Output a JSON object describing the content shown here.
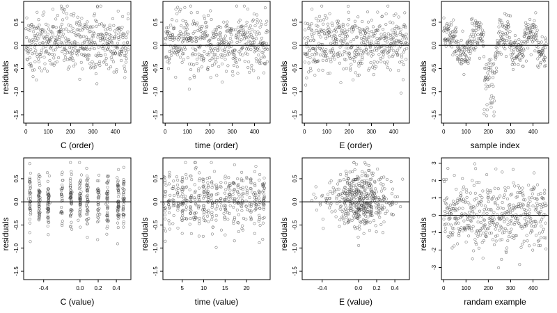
{
  "chart_data": [
    {
      "type": "scatter",
      "ylabel": "residuals",
      "xlabel": "C (order)",
      "xticks": [
        "0",
        "100",
        "200",
        "300",
        "400"
      ],
      "xlim": [
        -10,
        470
      ],
      "yticks": [
        "-1.5",
        "-1.0",
        "-0.5",
        "0.0",
        "0.5"
      ],
      "ylim": [
        -1.68,
        0.95
      ],
      "pattern": "spread_index",
      "n": 460,
      "refline": 0
    },
    {
      "type": "scatter",
      "ylabel": "residuals",
      "xlabel": "time (order)",
      "xticks": [
        "0",
        "100",
        "200",
        "300",
        "400"
      ],
      "xlim": [
        -10,
        470
      ],
      "yticks": [
        "-1.5",
        "-1.0",
        "-0.5",
        "0.0",
        "0.5"
      ],
      "ylim": [
        -1.68,
        0.95
      ],
      "pattern": "spread_index",
      "n": 460,
      "refline": 0
    },
    {
      "type": "scatter",
      "ylabel": "residuals",
      "xlabel": "E (order)",
      "xticks": [
        "0",
        "100",
        "200",
        "300",
        "400"
      ],
      "xlim": [
        -10,
        470
      ],
      "yticks": [
        "-1.5",
        "-1.0",
        "-0.5",
        "0.0",
        "0.5"
      ],
      "ylim": [
        -1.68,
        0.95
      ],
      "pattern": "spread_index",
      "n": 460,
      "refline": 0
    },
    {
      "type": "scatter",
      "ylabel": "residuals",
      "xlabel": "sample index",
      "xticks": [
        "0",
        "100",
        "200",
        "300",
        "400"
      ],
      "xlim": [
        -10,
        470
      ],
      "yticks": [
        "-1.5",
        "-1.0",
        "-0.5",
        "0.0",
        "0.5"
      ],
      "ylim": [
        -1.68,
        0.95
      ],
      "pattern": "clustered_index",
      "n": 460,
      "refline": 0
    },
    {
      "type": "scatter",
      "ylabel": "residuals",
      "xlabel": "C (value)",
      "xticks": [
        "-0.4",
        "0.0",
        "0.2",
        "0.4"
      ],
      "xtick_values": [
        -0.4,
        0.0,
        0.2,
        0.4
      ],
      "xlim": [
        -0.62,
        0.56
      ],
      "yticks": [
        "-1.5",
        "-1.0",
        "-0.5",
        "0.0",
        "0.5"
      ],
      "ylim": [
        -1.68,
        0.95
      ],
      "pattern": "discrete_columns",
      "column_positions": [
        -0.55,
        -0.45,
        -0.35,
        -0.2,
        -0.1,
        0.0,
        0.08,
        0.2,
        0.3,
        0.42,
        0.48
      ],
      "n": 460,
      "refline": 0
    },
    {
      "type": "scatter",
      "ylabel": "residuals",
      "xlabel": "time (value)",
      "xticks": [
        "5",
        "10",
        "15",
        "20"
      ],
      "xtick_values": [
        5,
        10,
        15,
        20
      ],
      "xlim": [
        0.5,
        25.5
      ],
      "yticks": [
        "-1.5",
        "-1.0",
        "-0.5",
        "0.0",
        "0.5"
      ],
      "ylim": [
        -1.68,
        0.95
      ],
      "pattern": "discrete_columns",
      "column_positions": [
        1,
        2,
        3,
        4,
        5,
        6,
        7,
        8,
        9,
        10,
        11,
        12,
        13,
        14,
        15,
        16,
        17,
        18,
        19,
        20,
        21,
        22,
        23,
        24
      ],
      "n": 460,
      "refline": 0
    },
    {
      "type": "scatter",
      "ylabel": "residuals",
      "xlabel": "E (value)",
      "xticks": [
        "-0.4",
        "0.0",
        "0.2",
        "0.4"
      ],
      "xtick_values": [
        -0.4,
        0.0,
        0.2,
        0.4
      ],
      "xlim": [
        -0.62,
        0.56
      ],
      "yticks": [
        "-1.5",
        "-1.0",
        "-0.5",
        "0.0",
        "0.5"
      ],
      "ylim": [
        -1.68,
        0.95
      ],
      "pattern": "centered_cloud",
      "n": 460,
      "refline": 0
    },
    {
      "type": "scatter",
      "ylabel": "residuals",
      "xlabel": "randam example",
      "xticks": [
        "0",
        "100",
        "200",
        "300",
        "400"
      ],
      "xlim": [
        -10,
        470
      ],
      "yticks": [
        "-3",
        "-2",
        "-1",
        "0",
        "1",
        "2",
        "3"
      ],
      "ytick_values": [
        -3,
        -2,
        -1,
        0,
        1,
        2,
        3
      ],
      "ylim": [
        -3.7,
        3.3
      ],
      "pattern": "normal_index",
      "n": 460,
      "refline": 0
    }
  ]
}
